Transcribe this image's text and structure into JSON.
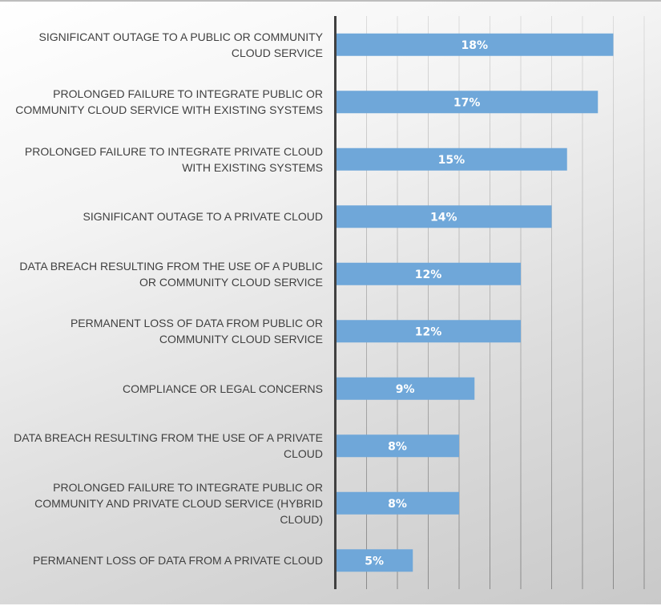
{
  "chart_data": {
    "type": "bar",
    "orientation": "horizontal",
    "categories": [
      "Significant outage to a public or community cloud service",
      "Prolonged failure to integrate public or community cloud service with existing systems",
      "Prolonged failure to integrate private cloud with existing systems",
      "Significant outage to a private cloud",
      "Data breach resulting from the use of a public or community cloud service",
      "Permanent loss of data from public or community cloud service",
      "Compliance or legal concerns",
      "Data breach resulting from the use of a private cloud",
      "Prolonged failure to integrate public or community and private cloud service (hybrid cloud)",
      "Permanent loss of data from a private cloud"
    ],
    "values": [
      18,
      17,
      15,
      14,
      12,
      12,
      9,
      8,
      8,
      5
    ],
    "data_labels": [
      "18%",
      "17%",
      "15%",
      "14%",
      "12%",
      "12%",
      "9%",
      "8%",
      "8%",
      "5%"
    ],
    "xlim": [
      0,
      20
    ],
    "grid_step": 2,
    "grid": true,
    "bar_color": "#6fa7d9",
    "title": "",
    "xlabel": "",
    "ylabel": ""
  }
}
